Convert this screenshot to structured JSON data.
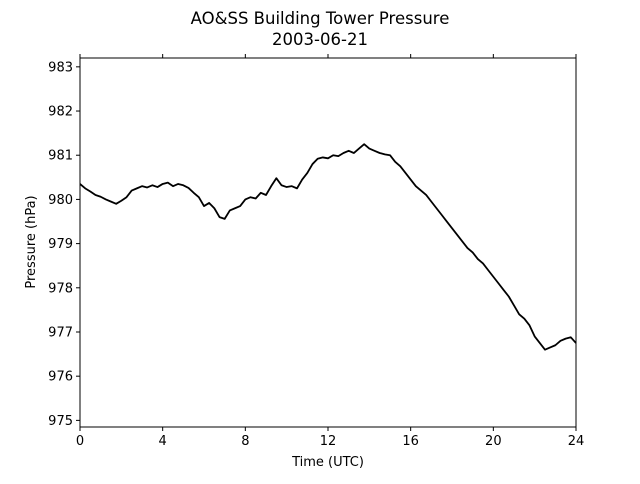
{
  "chart_data": {
    "type": "line",
    "title": "AO&SS Building Tower Pressure",
    "subtitle": "2003-06-21",
    "xlabel": "Time (UTC)",
    "ylabel": "Pressure (hPa)",
    "xlim": [
      0,
      24
    ],
    "ylim": [
      974.85,
      983.2
    ],
    "xticks": [
      0,
      4,
      8,
      12,
      16,
      20,
      24
    ],
    "yticks": [
      975,
      976,
      977,
      978,
      979,
      980,
      981,
      982,
      983
    ],
    "grid": false,
    "legend": "none",
    "series": [
      {
        "color": "#000000",
        "x": [
          0.0,
          0.25,
          0.5,
          0.75,
          1.0,
          1.25,
          1.5,
          1.75,
          2.0,
          2.25,
          2.5,
          2.75,
          3.0,
          3.25,
          3.5,
          3.75,
          4.0,
          4.25,
          4.5,
          4.75,
          5.0,
          5.25,
          5.5,
          5.75,
          6.0,
          6.25,
          6.5,
          6.75,
          7.0,
          7.25,
          7.5,
          7.75,
          8.0,
          8.25,
          8.5,
          8.75,
          9.0,
          9.25,
          9.5,
          9.75,
          10.0,
          10.25,
          10.5,
          10.75,
          11.0,
          11.25,
          11.5,
          11.75,
          12.0,
          12.25,
          12.5,
          12.75,
          13.0,
          13.25,
          13.5,
          13.75,
          14.0,
          14.25,
          14.5,
          14.75,
          15.0,
          15.25,
          15.5,
          15.75,
          16.0,
          16.25,
          16.5,
          16.75,
          17.0,
          17.25,
          17.5,
          17.75,
          18.0,
          18.25,
          18.5,
          18.75,
          19.0,
          19.25,
          19.5,
          19.75,
          20.0,
          20.25,
          20.5,
          20.75,
          21.0,
          21.25,
          21.5,
          21.75,
          22.0,
          22.25,
          22.5,
          22.75,
          23.0,
          23.25,
          23.5,
          23.75,
          24.0
        ],
        "values": [
          980.35,
          980.25,
          980.18,
          980.1,
          980.06,
          980.0,
          979.95,
          979.9,
          979.97,
          980.05,
          980.2,
          980.25,
          980.3,
          980.27,
          980.32,
          980.28,
          980.35,
          980.38,
          980.3,
          980.35,
          980.32,
          980.26,
          980.15,
          980.05,
          979.85,
          979.92,
          979.8,
          979.6,
          979.56,
          979.75,
          979.8,
          979.85,
          980.0,
          980.05,
          980.02,
          980.15,
          980.1,
          980.3,
          980.48,
          980.32,
          980.28,
          980.3,
          980.25,
          980.45,
          980.6,
          980.8,
          980.92,
          980.95,
          980.93,
          981.0,
          980.98,
          981.05,
          981.1,
          981.05,
          981.15,
          981.25,
          981.15,
          981.1,
          981.05,
          981.02,
          981.0,
          980.85,
          980.75,
          980.6,
          980.45,
          980.3,
          980.2,
          980.1,
          979.95,
          979.8,
          979.65,
          979.5,
          979.35,
          979.2,
          979.05,
          978.9,
          978.8,
          978.65,
          978.55,
          978.4,
          978.25,
          978.1,
          977.95,
          977.8,
          977.6,
          977.4,
          977.3,
          977.15,
          976.9,
          976.75,
          976.6,
          976.65,
          976.7,
          976.8,
          976.85,
          976.88,
          976.75
        ]
      }
    ]
  }
}
